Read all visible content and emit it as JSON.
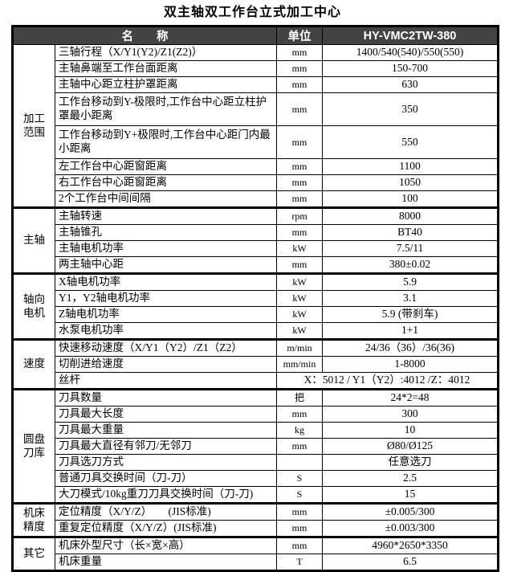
{
  "page": {
    "title": "双主轴双工作台立式加工中心"
  },
  "table": {
    "colors": {
      "header_bg": "#434343",
      "header_text": "#ffffff",
      "border": "#000000"
    },
    "header": {
      "name": "名　　称",
      "unit": "单位",
      "model": "HY-VMC2TW-380"
    },
    "groups": [
      {
        "label": "加工\n范围",
        "rows": [
          {
            "name": "三轴行程（X/Y1(Y2)/Z1(Z2)）",
            "unit": "mm",
            "value": "1400/540(540)/550(550)"
          },
          {
            "name": "主轴鼻端至工作台面距离",
            "unit": "mm",
            "value": "150-700"
          },
          {
            "name": "主轴中心距立柱护罩距离",
            "unit": "mm",
            "value": "630"
          },
          {
            "name": "工作台移动到Y-极限时,工作台中心距立柱护罩最小距离",
            "unit": "mm",
            "value": "350",
            "tall": true
          },
          {
            "name": "工作台移动到Y+极限时,工作台中心距门内最小距离",
            "unit": "mm",
            "value": "550",
            "tall": true
          },
          {
            "name": "左工作台中心距窗距离",
            "unit": "mm",
            "value": "1100"
          },
          {
            "name": "右工作台中心距窗距离",
            "unit": "mm",
            "value": "1050"
          },
          {
            "name": "2个工作台中间间隔",
            "unit": "mm",
            "value": "100"
          }
        ]
      },
      {
        "label": "主轴",
        "rows": [
          {
            "name": "主轴转速",
            "unit": "rpm",
            "value": "8000"
          },
          {
            "name": "主轴锥孔",
            "unit": "mm",
            "value": "BT40"
          },
          {
            "name": "主轴电机功率",
            "unit": "kW",
            "value": "7.5/11"
          },
          {
            "name": "两主轴中心距",
            "unit": "mm",
            "value": "380±0.02"
          }
        ]
      },
      {
        "label": "轴向\n电机",
        "rows": [
          {
            "name": "X轴电机功率",
            "unit": "kW",
            "value": "5.9"
          },
          {
            "name": "Y1，Y2轴电机功率",
            "unit": "kW",
            "value": "3.1"
          },
          {
            "name": "Z轴电机功率",
            "unit": "kW",
            "value": "5.9 (带刹车)"
          },
          {
            "name": "水泵电机功率",
            "unit": "kW",
            "value": "1+1"
          }
        ]
      },
      {
        "label": "速度",
        "rows": [
          {
            "name": "快速移动速度（X/Y1（Y2）/Z1（Z2）",
            "unit": "m/min",
            "value": "24/36（36）/36(36)"
          },
          {
            "name": "切削进给速度",
            "unit": "mm/min",
            "value": "1-8000"
          },
          {
            "name": "丝杆",
            "merged_value": "X：5012 / Y1（Y2）:4012 /Z：4012"
          }
        ]
      },
      {
        "label": "圆盘\n刀库",
        "rows": [
          {
            "name": "刀具数量",
            "unit": "把",
            "value": "24*2=48"
          },
          {
            "name": "刀具最大长度",
            "unit": "mm",
            "value": "300"
          },
          {
            "name": "刀具最大重量",
            "unit": "kg",
            "value": "10"
          },
          {
            "name": "刀具最大直径有邻刀/无邻刀",
            "unit": "mm",
            "value": "Ø80/Ø125"
          },
          {
            "name": "刀具选刀方式",
            "unit": "",
            "value": "任意选刀"
          },
          {
            "name": "普通刀具交换时间（刀-刀）",
            "unit": "S",
            "value": "2.5"
          },
          {
            "name": "大刀模式/10kg重刀刀具交换时间（刀-刀)",
            "unit": "S",
            "value": "15"
          }
        ]
      },
      {
        "label": "机床\n精度",
        "rows": [
          {
            "name": "定位精度（X/Y/Z）　　(JIS标准)",
            "unit": "mm",
            "value": "±0.005/300"
          },
          {
            "name": "重复定位精度（X/Y/Z）(JIS标准)",
            "unit": "mm",
            "value": "±0.003/300"
          }
        ]
      },
      {
        "label": "其它",
        "rows": [
          {
            "name": "机床外型尺寸（长×宽×高）",
            "unit": "mm",
            "value": "4960*2650*3350"
          },
          {
            "name": "机床重量",
            "unit": "T",
            "value": "6.5"
          }
        ]
      }
    ]
  }
}
